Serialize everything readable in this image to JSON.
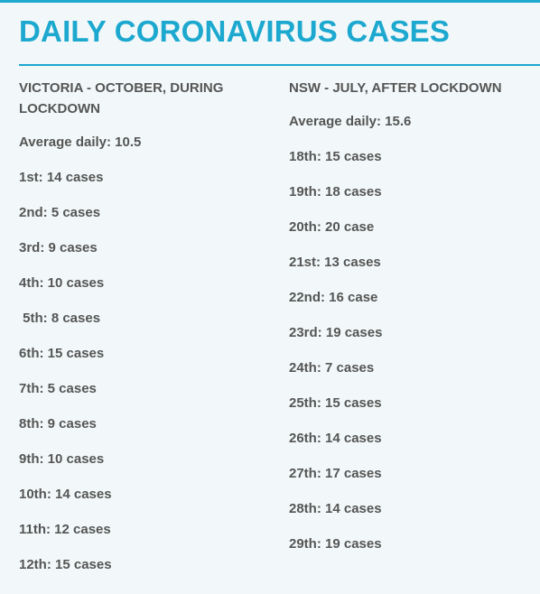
{
  "title": "DAILY CORONAVIRUS CASES",
  "left": {
    "heading": "VICTORIA - OCTOBER, DURING LOCKDOWN",
    "average": "Average daily: 10.5",
    "days": [
      "1st: 14 cases",
      "2nd: 5 cases",
      "3rd: 9 cases",
      "4th: 10 cases",
      " 5th: 8 cases",
      "6th: 15 cases",
      "7th: 5 cases",
      "8th: 9 cases",
      "9th: 10 cases",
      "10th: 14 cases",
      "11th: 12 cases",
      "12th: 15 cases"
    ]
  },
  "right": {
    "heading": "NSW  - JULY, AFTER LOCKDOWN",
    "average": "Average daily: 15.6",
    "days": [
      "18th: 15 cases",
      "19th: 18 cases",
      "20th: 20 case",
      "21st: 13 cases",
      "22nd: 16 case",
      "23rd: 19 cases",
      "24th: 7 cases",
      "25th: 15 cases",
      "26th: 14 cases",
      "27th: 17 cases",
      "28th: 14 cases",
      "29th: 19 cases"
    ]
  }
}
